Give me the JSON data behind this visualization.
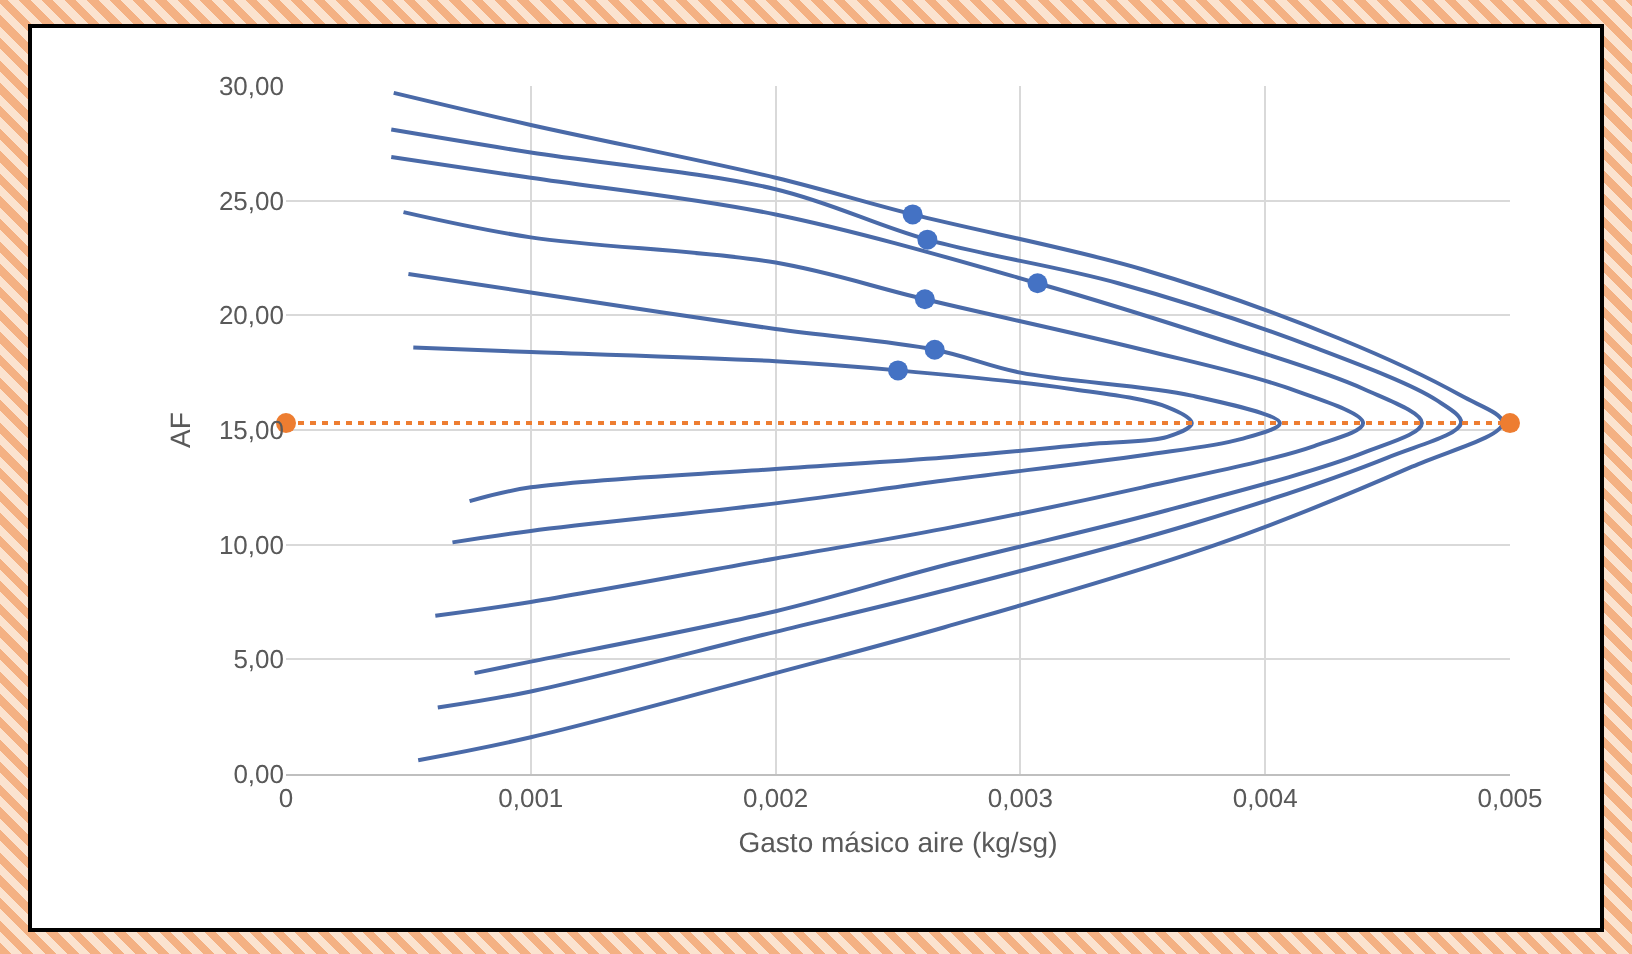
{
  "chart_data": {
    "type": "line",
    "xlabel": "Gasto másico aire (kg/sg)",
    "ylabel": "AF",
    "xlim": [
      0,
      0.005
    ],
    "xticks": [
      {
        "value": 0,
        "label": "0"
      },
      {
        "value": 0.001,
        "label": "0,001"
      },
      {
        "value": 0.002,
        "label": "0,002"
      },
      {
        "value": 0.003,
        "label": "0,003"
      },
      {
        "value": 0.004,
        "label": "0,004"
      },
      {
        "value": 0.005,
        "label": "0,005"
      }
    ],
    "ylim": [
      0,
      30
    ],
    "yticks": [
      {
        "value": 0,
        "label": "0,00"
      },
      {
        "value": 5,
        "label": "5,00"
      },
      {
        "value": 10,
        "label": "10,00"
      },
      {
        "value": 15,
        "label": "15,00"
      },
      {
        "value": 20,
        "label": "20,00"
      },
      {
        "value": 25,
        "label": "25,00"
      },
      {
        "value": 30,
        "label": "30,00"
      }
    ],
    "grid": true,
    "marker": "none",
    "line_style": "solid",
    "series": [
      {
        "color": "#4a6aa8",
        "x": [
          0.00052,
          0.001,
          0.002,
          0.0025,
          0.0032,
          0.0036,
          0.0037,
          0.0036,
          0.0033,
          0.00269,
          0.002,
          0.001,
          0.00075
        ],
        "values": [
          18.6,
          18.4,
          18.0,
          17.6,
          16.8,
          16.0,
          15.3,
          14.7,
          14.4,
          13.8,
          13.3,
          12.5,
          11.9
        ]
      },
      {
        "color": "#4a6aa8",
        "x": [
          0.0005,
          0.001,
          0.002,
          0.00265,
          0.003,
          0.0037,
          0.00406,
          0.0039,
          0.0035,
          0.00269,
          0.002,
          0.001,
          0.00068
        ],
        "values": [
          21.8,
          21.0,
          19.4,
          18.5,
          17.5,
          16.5,
          15.3,
          14.6,
          13.9,
          12.8,
          11.8,
          10.6,
          10.1
        ]
      },
      {
        "color": "#4a6aa8",
        "x": [
          0.00048,
          0.001,
          0.002,
          0.00261,
          0.0035,
          0.0041,
          0.0044,
          0.0042,
          0.0035,
          0.00269,
          0.002,
          0.001,
          0.00061
        ],
        "values": [
          24.5,
          23.4,
          22.3,
          20.7,
          18.5,
          16.8,
          15.3,
          14.3,
          12.5,
          10.7,
          9.4,
          7.5,
          6.9
        ]
      },
      {
        "color": "#4a6aa8",
        "x": [
          0.00043,
          0.001,
          0.002,
          0.00307,
          0.0038,
          0.0044,
          0.00464,
          0.0044,
          0.0036,
          0.00269,
          0.002,
          0.001,
          0.00077
        ],
        "values": [
          26.9,
          26.0,
          24.4,
          21.4,
          19.0,
          16.8,
          15.3,
          14.0,
          11.5,
          9.1,
          7.1,
          4.9,
          4.4
        ]
      },
      {
        "color": "#4a6aa8",
        "x": [
          0.00043,
          0.001,
          0.002,
          0.00262,
          0.0034,
          0.0042,
          0.0047,
          0.0048,
          0.0045,
          0.0037,
          0.00269,
          0.002,
          0.001,
          0.00062
        ],
        "values": [
          28.1,
          27.1,
          25.5,
          23.3,
          21.4,
          18.6,
          16.3,
          15.3,
          13.8,
          10.9,
          8.0,
          6.2,
          3.6,
          2.9
        ]
      },
      {
        "color": "#4a6aa8",
        "x": [
          0.00044,
          0.001,
          0.002,
          0.00256,
          0.0035,
          0.0043,
          0.0048,
          0.00497,
          0.0046,
          0.0038,
          0.00269,
          0.002,
          0.001,
          0.00054
        ],
        "values": [
          29.7,
          28.3,
          26.0,
          24.4,
          22.0,
          19.0,
          16.5,
          15.3,
          13.4,
          10.0,
          6.4,
          4.4,
          1.6,
          0.6
        ]
      },
      {
        "type": "scatter",
        "marker": "circle",
        "color": "#4472c4",
        "x": [
          0.00256,
          0.00262,
          0.00307,
          0.00261,
          0.00265,
          0.0025
        ],
        "values": [
          24.4,
          23.3,
          21.4,
          20.7,
          18.5,
          17.6
        ]
      },
      {
        "marker": "circle",
        "line_style": "dotted",
        "color": "#ed7d31",
        "x": [
          0,
          0.005
        ],
        "values": [
          15.3,
          15.3
        ]
      }
    ]
  }
}
